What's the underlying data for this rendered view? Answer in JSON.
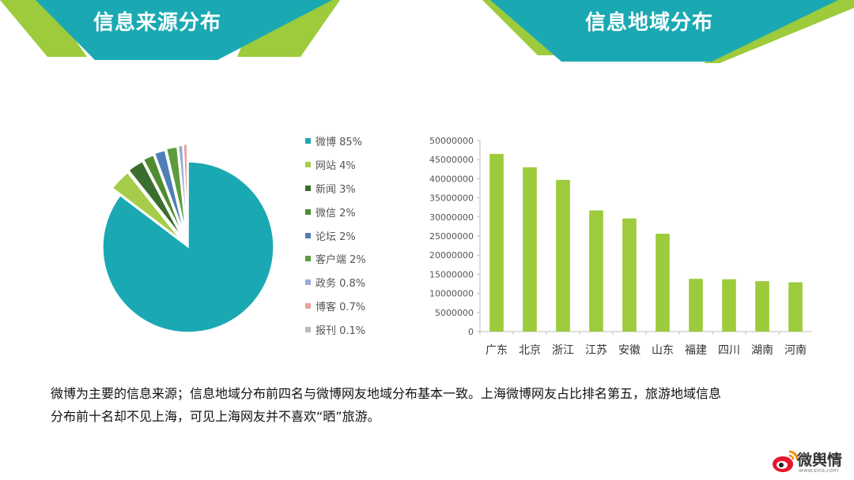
{
  "headers": {
    "left": "信息来源分布",
    "right": "信息地域分布"
  },
  "colors": {
    "teal": "#1aa9b3",
    "lime": "#9dcb3b",
    "bar": "#9dcb3b"
  },
  "pie_legend": [
    {
      "label": "微博 85%",
      "color": "#1aa9b3"
    },
    {
      "label": "网站 4%",
      "color": "#a5cd4a"
    },
    {
      "label": "新闻 3%",
      "color": "#3a6e2e"
    },
    {
      "label": "微信 2%",
      "color": "#4e8c2e"
    },
    {
      "label": "论坛 2%",
      "color": "#4f7fb5"
    },
    {
      "label": "客户端 2%",
      "color": "#5d9c3c"
    },
    {
      "label": "政务 0.8%",
      "color": "#9aaad6"
    },
    {
      "label": "博客 0.7%",
      "color": "#e8a49a"
    },
    {
      "label": "报刊 0.1%",
      "color": "#b8bcc4"
    }
  ],
  "chart_data": [
    {
      "type": "pie",
      "title": "",
      "slices": [
        {
          "label": "微博",
          "value": 85
        },
        {
          "label": "网站",
          "value": 4
        },
        {
          "label": "新闻",
          "value": 3
        },
        {
          "label": "微信",
          "value": 2
        },
        {
          "label": "论坛",
          "value": 2
        },
        {
          "label": "客户端",
          "value": 2
        },
        {
          "label": "政务",
          "value": 0.8
        },
        {
          "label": "博客",
          "value": 0.7
        },
        {
          "label": "报刊",
          "value": 0.1
        }
      ],
      "legend": "right"
    },
    {
      "type": "bar",
      "title": "",
      "categories": [
        "广东",
        "北京",
        "浙江",
        "江苏",
        "安徽",
        "山东",
        "福建",
        "四川",
        "湖南",
        "河南"
      ],
      "values": [
        46500000,
        43000000,
        39700000,
        31700000,
        29600000,
        25600000,
        13800000,
        13700000,
        13200000,
        12900000
      ],
      "ylim": [
        0,
        50000000
      ],
      "yticks": [
        0,
        5000000,
        10000000,
        15000000,
        20000000,
        25000000,
        30000000,
        35000000,
        40000000,
        45000000,
        50000000
      ],
      "grid": false,
      "xlabel": "",
      "ylabel": ""
    }
  ],
  "summary": {
    "line1": "微博为主要的信息来源；信息地域分布前四名与微博网友地域分布基本一致。上海微博网友占比排名第五，旅游地域信息",
    "line2": "分布前十名却不见上海，可见上海网友并不喜欢“晒”旅游。"
  },
  "logo": {
    "text": "微舆情",
    "url": "www.sina.com"
  }
}
